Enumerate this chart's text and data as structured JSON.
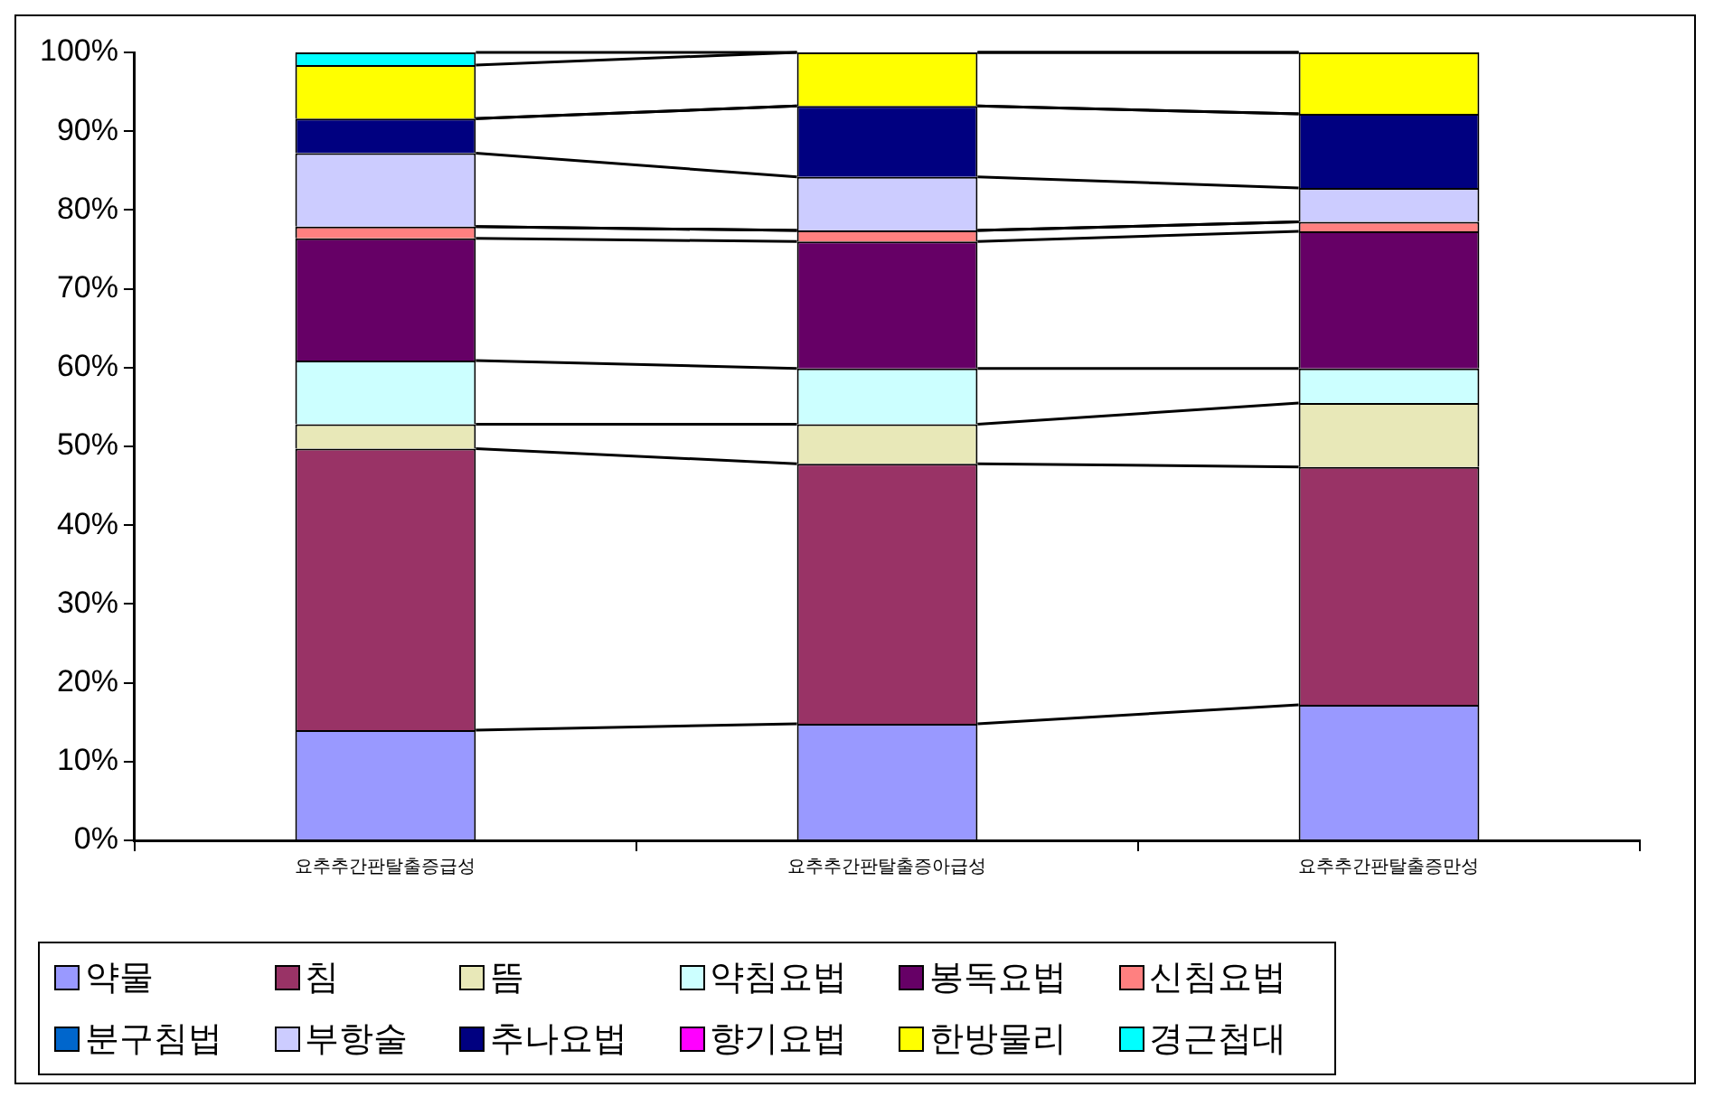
{
  "chart_data": {
    "type": "bar",
    "stacked": true,
    "categories": [
      "요추추간판탈출증급성",
      "요추추간판탈출증아급성",
      "요추추간판탈출증만성"
    ],
    "ylim": [
      0,
      100
    ],
    "yticks": [
      {
        "value": 0,
        "label": "0%"
      },
      {
        "value": 10,
        "label": "10%"
      },
      {
        "value": 20,
        "label": "20%"
      },
      {
        "value": 30,
        "label": "30%"
      },
      {
        "value": 40,
        "label": "40%"
      },
      {
        "value": 50,
        "label": "50%"
      },
      {
        "value": 60,
        "label": "60%"
      },
      {
        "value": 70,
        "label": "70%"
      },
      {
        "value": 80,
        "label": "80%"
      },
      {
        "value": 90,
        "label": "90%"
      },
      {
        "value": 100,
        "label": "100%"
      }
    ],
    "grid": false,
    "legend": "bottom",
    "series": [
      {
        "name": "약물",
        "color": "#9999ff",
        "values": [
          14.0,
          14.8,
          17.2
        ]
      },
      {
        "name": "침",
        "color": "#993366",
        "values": [
          35.7,
          33.0,
          30.2
        ]
      },
      {
        "name": "뜸",
        "color": "#e8e8b8",
        "values": [
          3.1,
          5.0,
          8.1
        ]
      },
      {
        "name": "약침요법",
        "color": "#ccffff",
        "values": [
          8.1,
          7.1,
          4.4
        ]
      },
      {
        "name": "봉독요법",
        "color": "#660066",
        "values": [
          15.5,
          16.1,
          17.4
        ]
      },
      {
        "name": "신침요법",
        "color": "#ff8080",
        "values": [
          1.5,
          1.4,
          1.2
        ]
      },
      {
        "name": "분구침법",
        "color": "#0066cc",
        "values": [
          0,
          0,
          0
        ]
      },
      {
        "name": "부항술",
        "color": "#ccccff",
        "values": [
          9.3,
          6.8,
          4.3
        ]
      },
      {
        "name": "추나요법",
        "color": "#000080",
        "values": [
          4.4,
          9.0,
          9.4
        ]
      },
      {
        "name": "향기요법",
        "color": "#ff00ff",
        "values": [
          0,
          0,
          0
        ]
      },
      {
        "name": "한방물리",
        "color": "#ffff00",
        "values": [
          6.8,
          6.8,
          7.8
        ]
      },
      {
        "name": "경근첩대",
        "color": "#00ffff",
        "values": [
          1.6,
          0,
          0
        ]
      }
    ]
  }
}
